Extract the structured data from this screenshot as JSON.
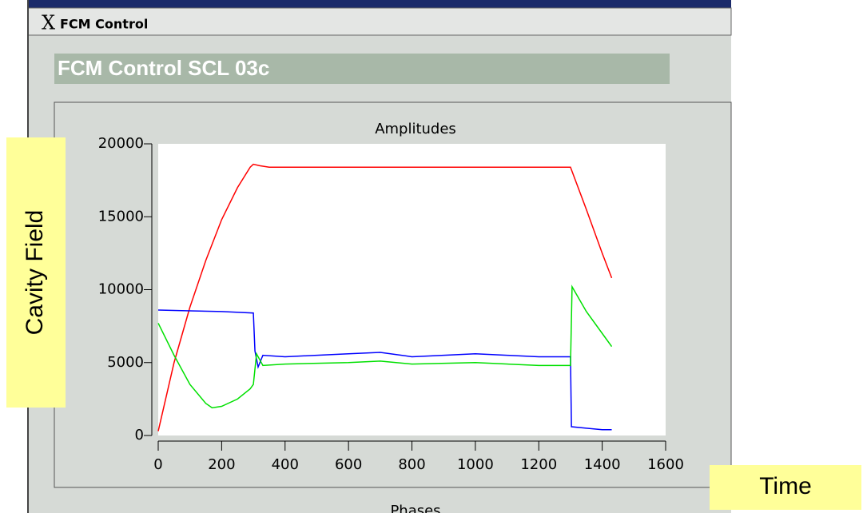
{
  "window": {
    "title": "FCM Control",
    "header": "FCM Control SCL 03c",
    "next_panel": "Phases"
  },
  "chart_data": {
    "type": "line",
    "title": "Amplitudes",
    "series": [
      {
        "color": "#ff0000",
        "x": [
          0,
          50,
          100,
          150,
          200,
          250,
          290,
          300,
          320,
          350,
          1300,
          1350,
          1400,
          1430
        ],
        "values": [
          300,
          5000,
          8800,
          12000,
          14800,
          17000,
          18400,
          18600,
          18500,
          18400,
          18400,
          15500,
          12500,
          10800
        ]
      },
      {
        "color": "#0000ff",
        "x": [
          0,
          100,
          200,
          300,
          305,
          315,
          330,
          400,
          500,
          600,
          700,
          800,
          900,
          1000,
          1100,
          1200,
          1300,
          1303,
          1350,
          1400,
          1430
        ],
        "values": [
          8600,
          8550,
          8500,
          8400,
          5800,
          4700,
          5500,
          5400,
          5500,
          5600,
          5700,
          5400,
          5500,
          5600,
          5500,
          5400,
          5400,
          600,
          500,
          400,
          400
        ]
      },
      {
        "color": "#00e000",
        "x": [
          0,
          50,
          100,
          150,
          170,
          200,
          250,
          290,
          300,
          310,
          330,
          400,
          600,
          700,
          800,
          1000,
          1200,
          1300,
          1305,
          1350,
          1400,
          1430
        ],
        "values": [
          7700,
          5500,
          3500,
          2200,
          1900,
          2000,
          2500,
          3200,
          3500,
          5600,
          4800,
          4900,
          5000,
          5100,
          4900,
          5000,
          4800,
          4800,
          10200,
          8500,
          7000,
          6100
        ]
      }
    ],
    "xlim": [
      0,
      1600
    ],
    "xticks": [
      0,
      200,
      400,
      600,
      800,
      1000,
      1200,
      1400,
      1600
    ],
    "ylim": [
      0,
      20000
    ],
    "yticks": [
      0,
      5000,
      10000,
      15000,
      20000
    ]
  },
  "annotations": {
    "y_axis": "Cavity Field",
    "x_axis": "Time"
  }
}
